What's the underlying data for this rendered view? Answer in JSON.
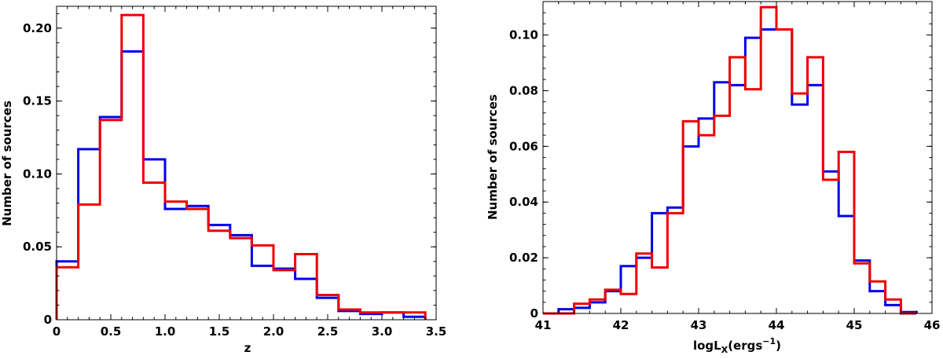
{
  "colors": {
    "series_a": "#0000ee",
    "series_b": "#ee0000"
  },
  "chart_data": [
    {
      "type": "histogram",
      "xlabel": "z",
      "ylabel": "Number of sources",
      "xlim": [
        0,
        3.5
      ],
      "ylim": [
        0,
        0.215
      ],
      "xticks": [
        0,
        0.5,
        1.0,
        1.5,
        2.0,
        2.5,
        3.0,
        3.5
      ],
      "xtick_labels": [
        "0",
        "0.5",
        "1.0",
        "1.5",
        "2.0",
        "2.5",
        "3.0",
        "3.5"
      ],
      "yticks": [
        0,
        0.05,
        0.1,
        0.15,
        0.2
      ],
      "ytick_labels": [
        "0",
        "0.05",
        "0.10",
        "0.15",
        "0.20"
      ],
      "bin_edges": [
        0,
        0.2,
        0.4,
        0.6,
        0.8,
        1.0,
        1.2,
        1.4,
        1.6,
        1.8,
        2.0,
        2.2,
        2.4,
        2.6,
        2.8,
        3.0,
        3.2,
        3.4
      ],
      "series": [
        {
          "name": "blue",
          "color": "#0000ee",
          "values": [
            0.04,
            0.117,
            0.139,
            0.184,
            0.11,
            0.076,
            0.078,
            0.065,
            0.058,
            0.037,
            0.035,
            0.028,
            0.015,
            0.006,
            0.004,
            0.005,
            0.002
          ]
        },
        {
          "name": "red",
          "color": "#ee0000",
          "values": [
            0.036,
            0.079,
            0.137,
            0.209,
            0.094,
            0.081,
            0.076,
            0.061,
            0.056,
            0.051,
            0.034,
            0.045,
            0.017,
            0.007,
            0.005,
            0.005,
            0.005
          ]
        }
      ]
    },
    {
      "type": "histogram",
      "xlabel_main": "logL",
      "xlabel_sub": "X",
      "xlabel_paren": "(ergs",
      "xlabel_sup": "−1",
      "xlabel_close": ")",
      "ylabel": "Number of sources",
      "xlim": [
        41,
        46
      ],
      "ylim": [
        0,
        0.112
      ],
      "xticks": [
        41,
        42,
        43,
        44,
        45,
        46
      ],
      "xtick_labels": [
        "41",
        "42",
        "43",
        "44",
        "45",
        "46"
      ],
      "yticks": [
        0,
        0.02,
        0.04,
        0.06,
        0.08,
        0.1
      ],
      "ytick_labels": [
        "0",
        "0.02",
        "0.04",
        "0.06",
        "0.08",
        "0.10"
      ],
      "bin_edges": [
        41.0,
        41.2,
        41.4,
        41.6,
        41.8,
        42.0,
        42.2,
        42.4,
        42.6,
        42.8,
        43.0,
        43.2,
        43.4,
        43.6,
        43.8,
        44.0,
        44.2,
        44.4,
        44.6,
        44.8,
        45.0,
        45.2,
        45.4,
        45.6,
        45.8
      ],
      "series": [
        {
          "name": "blue",
          "color": "#0000ee",
          "values": [
            0.0,
            0.0015,
            0.002,
            0.004,
            0.008,
            0.017,
            0.02,
            0.036,
            0.038,
            0.06,
            0.07,
            0.083,
            0.082,
            0.099,
            0.102,
            0.102,
            0.075,
            0.082,
            0.051,
            0.035,
            0.019,
            0.008,
            0.003,
            0.0005
          ]
        },
        {
          "name": "red",
          "color": "#ee0000",
          "values": [
            0.0,
            0.0,
            0.0035,
            0.005,
            0.0085,
            0.007,
            0.0215,
            0.0165,
            0.036,
            0.069,
            0.064,
            0.071,
            0.092,
            0.0805,
            0.11,
            0.102,
            0.079,
            0.092,
            0.048,
            0.058,
            0.018,
            0.0115,
            0.005,
            0.0
          ]
        }
      ]
    }
  ]
}
